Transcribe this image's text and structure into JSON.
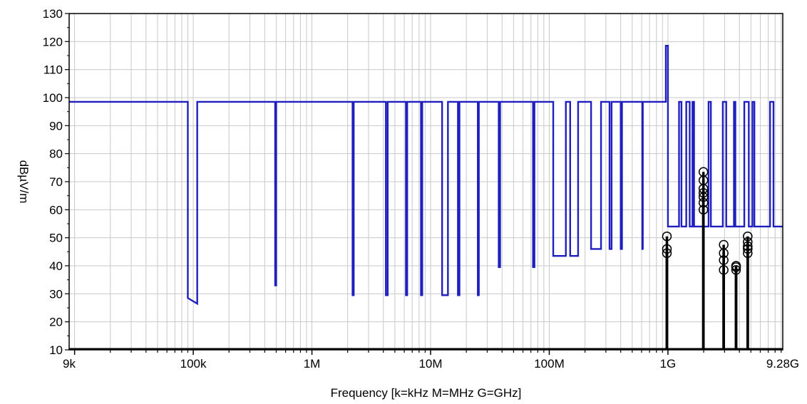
{
  "chart_data": {
    "type": "line",
    "xlabel": "Frequency [k=kHz M=MHz G=GHz]",
    "ylabel": "dBµV/m",
    "x_scale": "log",
    "xlim": [
      9000,
      9280000000
    ],
    "ylim": [
      10,
      130
    ],
    "grid": true,
    "x_ticks": [
      {
        "value": 9000,
        "label": "9k"
      },
      {
        "value": 100000,
        "label": "100k"
      },
      {
        "value": 1000000,
        "label": "1M"
      },
      {
        "value": 10000000,
        "label": "10M"
      },
      {
        "value": 100000000,
        "label": "100M"
      },
      {
        "value": 1000000000,
        "label": "1G"
      },
      {
        "value": 9280000000,
        "label": "9.28G"
      }
    ],
    "y_ticks": [
      10,
      20,
      30,
      40,
      50,
      60,
      70,
      80,
      90,
      100,
      110,
      120,
      130
    ],
    "colors": {
      "limit_line": "#1f1fbf",
      "measurement": "#000000",
      "grid": "#c8c8c8"
    },
    "series": [
      {
        "style": "limit",
        "x": [
          9000,
          90000,
          90000,
          108000,
          108000,
          490000,
          490000,
          500000,
          500000,
          2200000,
          2200000,
          2250000,
          2250000,
          4200000,
          4200000,
          4350000,
          4350000,
          6200000,
          6200000,
          6350000,
          6350000,
          8300000,
          8300000,
          8500000,
          8500000,
          12500000,
          12500000,
          14000000,
          14000000,
          17000000,
          17000000,
          17500000,
          17500000,
          25000000,
          25000000,
          25500000,
          25500000,
          37500000,
          37500000,
          38500000,
          38500000,
          73000000,
          73000000,
          75000000,
          75000000,
          108000000,
          108000000,
          138000000,
          138000000,
          150000000,
          150000000,
          175000000,
          175000000,
          225000000,
          225000000,
          273000000,
          273000000,
          322000000,
          322000000,
          335000000,
          335000000,
          400000000,
          400000000,
          410000000,
          410000000,
          608000000,
          608000000,
          614000000,
          614000000,
          960000000,
          960000000,
          1000000000,
          1000000000,
          1240000000,
          1240000000,
          1300000000,
          1300000000,
          1427000000,
          1427000000,
          1525000000,
          1525000000,
          1610000000,
          1610000000,
          1660000000,
          1660000000,
          2200000000,
          2200000000,
          2300000000,
          2300000000,
          2900000000,
          2900000000,
          3100000000,
          3100000000,
          3600000000,
          3600000000,
          3700000000,
          3700000000,
          4400000000,
          4400000000,
          4800000000,
          4800000000,
          5150000000,
          5150000000,
          5350000000,
          5350000000,
          7250000000,
          7250000000,
          7750000000,
          7750000000,
          9280000000
        ],
        "y": [
          98.5,
          98.5,
          28.5,
          26.5,
          98.5,
          98.5,
          33,
          33,
          98.5,
          98.5,
          29.5,
          29.5,
          98.5,
          98.5,
          29.5,
          29.5,
          98.5,
          98.5,
          29.5,
          29.5,
          98.5,
          98.5,
          29.5,
          29.5,
          98.5,
          98.5,
          29.5,
          29.5,
          98.5,
          98.5,
          29.5,
          29.5,
          98.5,
          98.5,
          29.5,
          29.5,
          98.5,
          98.5,
          39.5,
          39.5,
          98.5,
          98.5,
          39.5,
          39.5,
          98.5,
          98.5,
          43.5,
          43.5,
          98.5,
          98.5,
          43.5,
          43.5,
          98.5,
          98.5,
          46,
          46,
          98.5,
          98.5,
          46,
          46,
          98.5,
          98.5,
          46,
          46,
          98.5,
          98.5,
          46,
          46,
          98.5,
          98.5,
          118.5,
          118.5,
          54,
          54,
          98.5,
          98.5,
          54,
          54,
          98.5,
          98.5,
          54,
          54,
          98.5,
          98.5,
          54,
          54,
          98.5,
          98.5,
          54,
          54,
          98.5,
          98.5,
          54,
          54,
          98.5,
          98.5,
          54,
          54,
          98.5,
          98.5,
          54,
          54,
          98.5,
          98.5,
          54,
          54,
          98.5,
          98.5,
          54,
          54
        ]
      },
      {
        "style": "stem",
        "x": [
          980000000,
          980000000,
          980000000,
          1990000000,
          1990000000,
          1990000000,
          1990000000,
          1990000000,
          1990000000,
          1990000000,
          2950000000,
          2950000000,
          2950000000,
          2950000000,
          3750000000,
          3750000000,
          3750000000,
          4700000000,
          4700000000,
          4700000000,
          4700000000,
          4700000000
        ],
        "y": [
          44.5,
          46,
          50.5,
          60,
          62.5,
          64.5,
          66,
          67.5,
          70.5,
          73.5,
          38.5,
          42,
          44.5,
          47.5,
          38.5,
          39.5,
          40,
          44.5,
          46,
          47,
          48.5,
          50.5
        ]
      }
    ]
  }
}
